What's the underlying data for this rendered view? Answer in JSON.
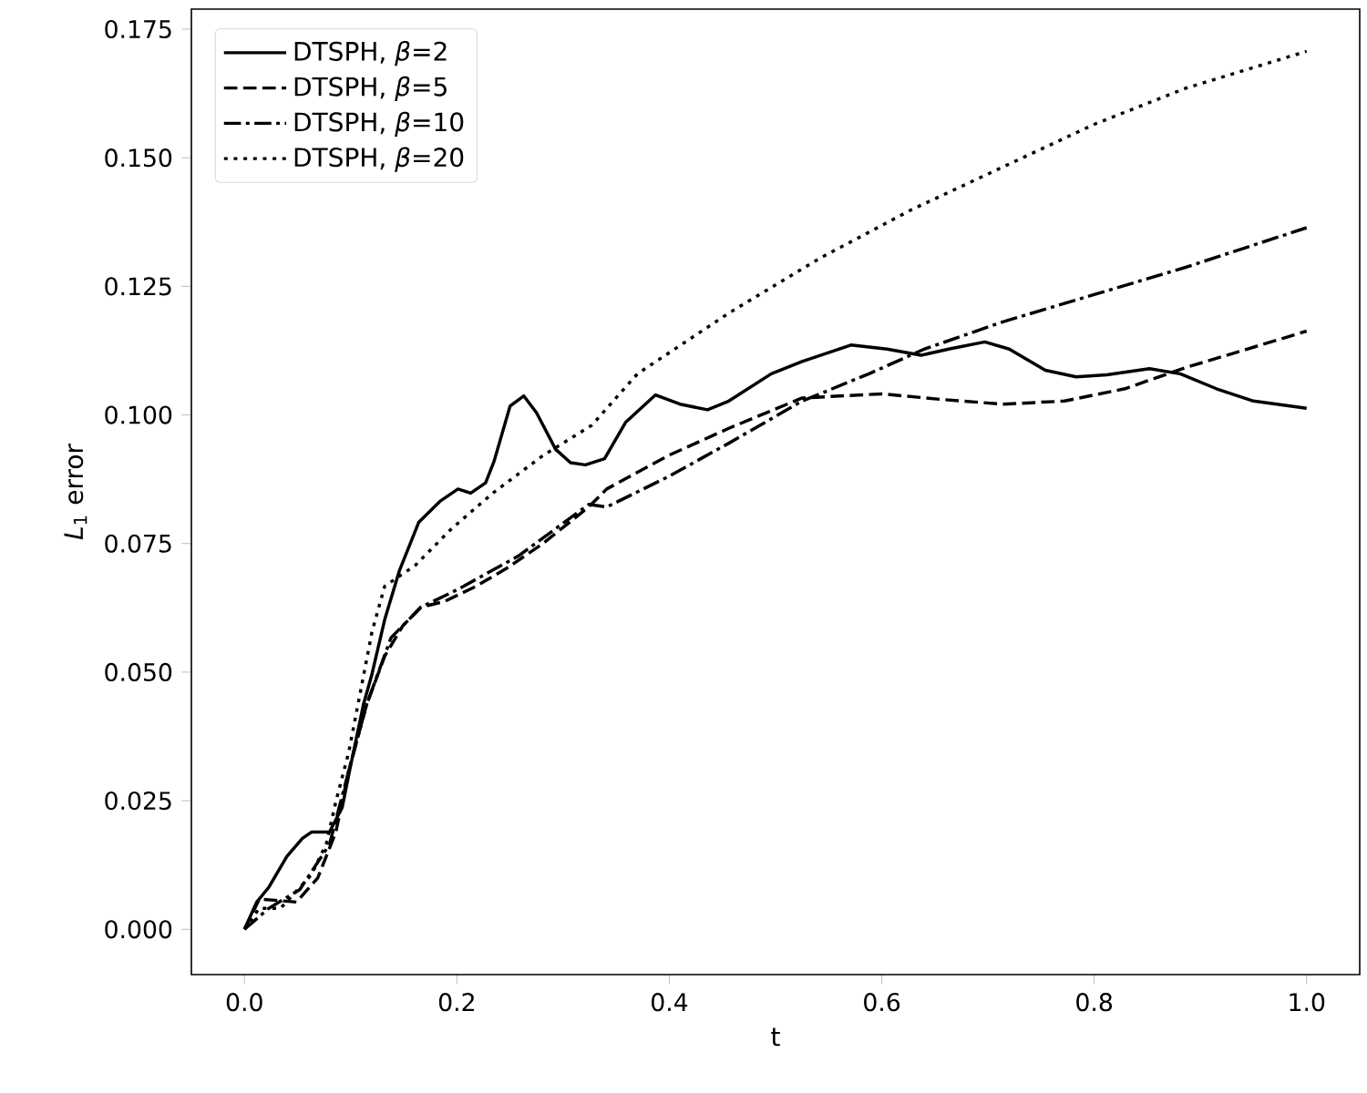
{
  "chart_data": {
    "type": "line",
    "xlabel": "t",
    "ylabel": "*L*$_{1}$ error",
    "xlim": [
      -0.05,
      1.05
    ],
    "ylim": [
      -0.0088,
      0.1789
    ],
    "xticks": [
      {
        "value": 0,
        "label": "0.0"
      },
      {
        "value": 0.2,
        "label": "0.2"
      },
      {
        "value": 0.4,
        "label": "0.4"
      },
      {
        "value": 0.6,
        "label": "0.6"
      },
      {
        "value": 0.8,
        "label": "0.8"
      },
      {
        "value": 1,
        "label": "1.0"
      }
    ],
    "yticks": [
      {
        "value": 0,
        "label": "0.000"
      },
      {
        "value": 0.025,
        "label": "0.025"
      },
      {
        "value": 0.05,
        "label": "0.050"
      },
      {
        "value": 0.075,
        "label": "0.075"
      },
      {
        "value": 0.1,
        "label": "0.100"
      },
      {
        "value": 0.125,
        "label": "0.125"
      },
      {
        "value": 0.15,
        "label": "0.150"
      },
      {
        "value": 0.175,
        "label": "0.175"
      }
    ],
    "legend": "top left",
    "series": [
      {
        "name": "DTSPH, *β*=2",
        "color": "#000000",
        "line_style": "solid",
        "x": [
          0,
          0.0115,
          0.023,
          0.04,
          0.0546,
          0.063,
          0.08,
          0.092,
          0.1,
          0.112,
          0.12,
          0.132,
          0.146,
          0.164,
          0.184,
          0.201,
          0.213,
          0.227,
          0.235,
          0.25,
          0.263,
          0.275,
          0.293,
          0.307,
          0.321,
          0.339,
          0.359,
          0.387,
          0.41,
          0.436,
          0.456,
          0.496,
          0.525,
          0.571,
          0.605,
          0.637,
          0.663,
          0.697,
          0.72,
          0.754,
          0.783,
          0.812,
          0.852,
          0.881,
          0.915,
          0.95,
          1.0
        ],
        "values": [
          0,
          0.0053,
          0.0082,
          0.0142,
          0.0177,
          0.0189,
          0.0189,
          0.0237,
          0.0319,
          0.0437,
          0.0496,
          0.0602,
          0.0698,
          0.0791,
          0.0832,
          0.0856,
          0.0848,
          0.0868,
          0.091,
          0.1017,
          0.1037,
          0.1004,
          0.0933,
          0.0907,
          0.0903,
          0.0915,
          0.0986,
          0.1039,
          0.1021,
          0.101,
          0.1027,
          0.108,
          0.1104,
          0.1136,
          0.1128,
          0.1116,
          0.1128,
          0.1142,
          0.1128,
          0.1087,
          0.1074,
          0.1078,
          0.109,
          0.108,
          0.1051,
          0.1027,
          0.1013
        ]
      },
      {
        "name": "DTSPH, *β*=5",
        "color": "#000000",
        "line_style": "dashed",
        "x": [
          0,
          0.014,
          0.049,
          0.069,
          0.086,
          0.098,
          0.115,
          0.132,
          0.149,
          0.166,
          0.189,
          0.218,
          0.247,
          0.281,
          0.324,
          0.341,
          0.399,
          0.456,
          0.525,
          0.6,
          0.657,
          0.714,
          0.772,
          0.829,
          0.886,
          0.944,
          1.0
        ],
        "values": [
          0,
          0.0059,
          0.0053,
          0.01,
          0.0189,
          0.0307,
          0.0437,
          0.0531,
          0.059,
          0.0626,
          0.0638,
          0.0667,
          0.0702,
          0.075,
          0.0821,
          0.0856,
          0.0921,
          0.0974,
          0.1033,
          0.1041,
          0.103,
          0.1021,
          0.1027,
          0.1051,
          0.1092,
          0.1128,
          0.1163
        ]
      },
      {
        "name": "DTSPH, *β*=10",
        "color": "#000000",
        "line_style": "dashdot",
        "x": [
          0,
          0.023,
          0.052,
          0.08,
          0.098,
          0.115,
          0.138,
          0.166,
          0.201,
          0.258,
          0.324,
          0.341,
          0.399,
          0.456,
          0.525,
          0.588,
          0.64,
          0.714,
          0.8,
          0.886,
          1.0
        ],
        "values": [
          0,
          0.0041,
          0.0077,
          0.0165,
          0.0307,
          0.0437,
          0.0567,
          0.0626,
          0.0661,
          0.0726,
          0.0826,
          0.0821,
          0.088,
          0.0945,
          0.1027,
          0.108,
          0.1128,
          0.1181,
          0.1234,
          0.1287,
          0.1364
        ]
      },
      {
        "name": "DTSPH, *β*=20",
        "color": "#000000",
        "line_style": "dotted",
        "x": [
          0,
          0.014,
          0.034,
          0.063,
          0.077,
          0.086,
          0.098,
          0.109,
          0.12,
          0.132,
          0.161,
          0.195,
          0.235,
          0.281,
          0.327,
          0.37,
          0.456,
          0.542,
          0.628,
          0.714,
          0.8,
          0.886,
          1.0
        ],
        "values": [
          0,
          0.0041,
          0.0041,
          0.0106,
          0.0166,
          0.0248,
          0.0343,
          0.046,
          0.0578,
          0.0667,
          0.0708,
          0.0779,
          0.085,
          0.0921,
          0.098,
          0.108,
          0.1198,
          0.1305,
          0.1399,
          0.1482,
          0.1565,
          0.1635,
          0.1707
        ]
      }
    ]
  }
}
